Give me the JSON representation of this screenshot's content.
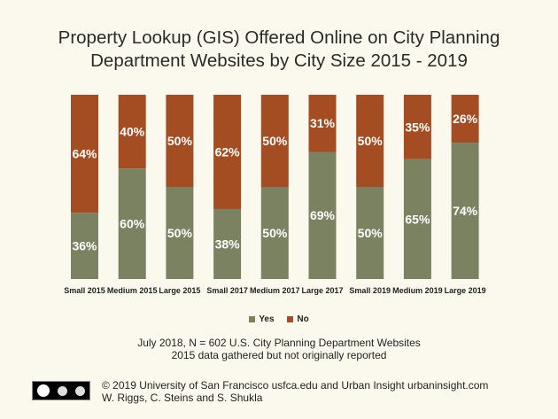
{
  "title_line1": "Property Lookup (GIS) Offered Online on City Planning",
  "title_line2": "Department Websites by City Size 2015 - 2019",
  "colors": {
    "yes": "#7a8262",
    "no": "#a44c22",
    "background": "#fbf9ee"
  },
  "chart_data": {
    "type": "bar",
    "stacked": true,
    "percent": true,
    "categories": [
      "Small 2015",
      "Medium 2015",
      "Large 2015",
      "Small 2017",
      "Medium 2017",
      "Large 2017",
      "Small 2019",
      "Medium 2019",
      "Large 2019"
    ],
    "series": [
      {
        "name": "Yes",
        "values": [
          36,
          60,
          50,
          38,
          50,
          69,
          50,
          65,
          74
        ]
      },
      {
        "name": "No",
        "values": [
          64,
          40,
          50,
          62,
          50,
          31,
          50,
          35,
          26
        ]
      }
    ],
    "ylim": [
      0,
      100
    ],
    "grid": false,
    "legend_position": "bottom"
  },
  "legend": {
    "yes_label": "Yes",
    "no_label": "No"
  },
  "note_line1": "July 2018, N = 602 U.S. City Planning Department Websites",
  "note_line2": "2015 data gathered but not originally reported",
  "footer_line1": "© 2019 University of San Francisco usfca.edu and Urban Insight urbaninsight.com",
  "footer_line2": "W. Riggs, C. Steins and S. Shukla",
  "cc_icon": "creative-commons-by-sa-icon"
}
